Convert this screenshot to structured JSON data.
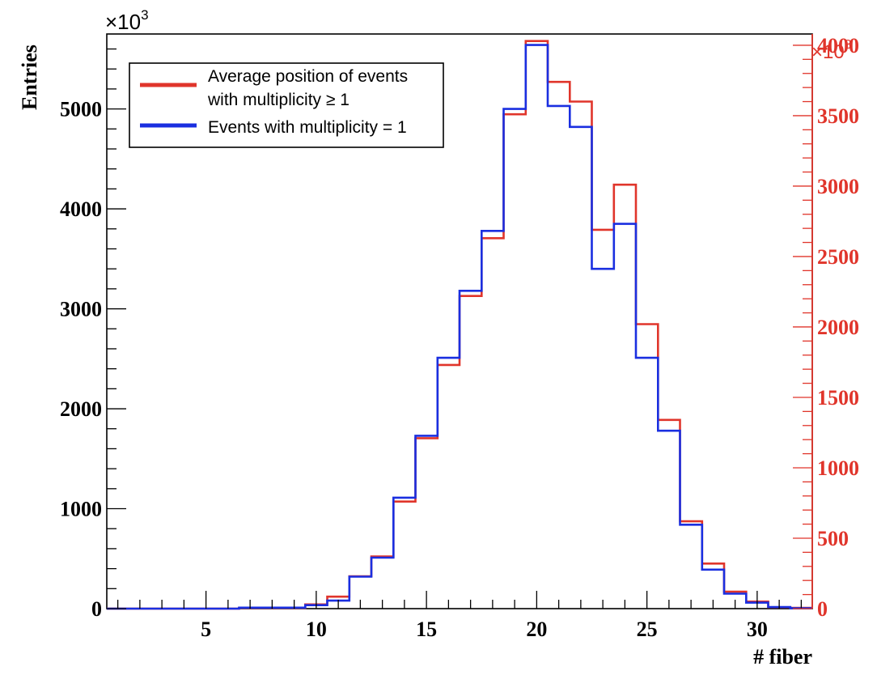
{
  "chart_data": {
    "type": "histogram",
    "xlabel": "# fiber",
    "ylabel": "Entries",
    "left_multiplier": "×10",
    "left_multiplier_exp": "3",
    "right_multiplier": "×10",
    "right_multiplier_exp": "3",
    "xlim": [
      0.5,
      32.5
    ],
    "ylim_left": [
      0,
      5750
    ],
    "ylim_right": [
      0,
      4080
    ],
    "x_ticks": [
      "5",
      "10",
      "15",
      "20",
      "25",
      "30"
    ],
    "y_left_ticks": [
      "0",
      "1000",
      "2000",
      "3000",
      "4000",
      "5000"
    ],
    "y_right_ticks": [
      "0",
      "500",
      "1000",
      "1500",
      "2000",
      "2500",
      "3000",
      "3500",
      "4000"
    ],
    "bins": [
      1,
      2,
      3,
      4,
      5,
      6,
      7,
      8,
      9,
      10,
      11,
      12,
      13,
      14,
      15,
      16,
      17,
      18,
      19,
      20,
      21,
      22,
      23,
      24,
      25,
      26,
      27,
      28,
      29,
      30,
      31,
      32
    ],
    "series": [
      {
        "name": "Average position of events with multiplicity ≥ 1",
        "legend_lines": [
          "Average position of events",
          "with multiplicity ≥ 1"
        ],
        "color": "#e0352b",
        "axis": "right",
        "values": [
          0,
          0,
          0,
          0,
          0,
          0,
          5,
          5,
          5,
          30,
          85,
          230,
          370,
          760,
          1210,
          1730,
          2220,
          2630,
          3510,
          4030,
          3740,
          3600,
          2690,
          3010,
          2020,
          1340,
          620,
          320,
          120,
          50,
          10,
          5
        ]
      },
      {
        "name": "Events with multiplicity = 1",
        "legend_lines": [
          "Events with multiplicity = 1"
        ],
        "color": "#1a2fe0",
        "axis": "left",
        "values": [
          0,
          0,
          0,
          0,
          0,
          0,
          10,
          10,
          10,
          35,
          80,
          320,
          510,
          1110,
          1730,
          2510,
          3180,
          3780,
          5000,
          5640,
          5030,
          4820,
          3400,
          3850,
          2510,
          1780,
          840,
          390,
          150,
          60,
          15,
          5
        ]
      }
    ],
    "legend_position": "top-left",
    "grid": false
  }
}
